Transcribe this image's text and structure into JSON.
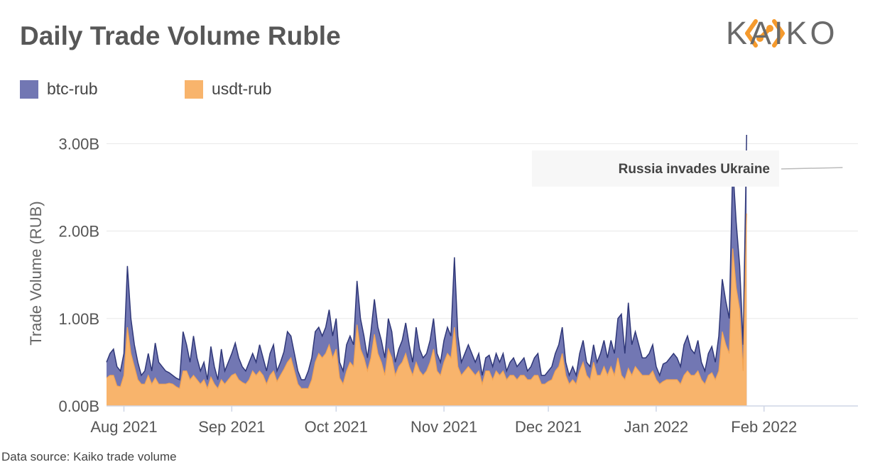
{
  "header": {
    "title": "Daily Trade Volume Ruble",
    "logo_text": "KAIKO"
  },
  "footer": {
    "source": "Data source: Kaiko trade volume"
  },
  "colors": {
    "btc": "#7277b3",
    "btc_line": "#2f3778",
    "usdt": "#f8b46c",
    "usdt_line": "#f3a453",
    "grid": "#e8e8e8",
    "logo_orange": "#f59a2d"
  },
  "chart_data": {
    "type": "area",
    "stacked": true,
    "title": "Daily Trade Volume Ruble",
    "xlabel": "",
    "ylabel": "Trade Volume (RUB)",
    "ylim": [
      0,
      3.1
    ],
    "y_ticks": [
      0,
      1,
      2,
      3
    ],
    "y_tick_labels": [
      "0.00B",
      "1.00B",
      "2.00B",
      "3.00B"
    ],
    "x_ticks": [
      "Aug 2021",
      "Sep 2021",
      "Oct 2021",
      "Nov 2021",
      "Dec 2021",
      "Jan 2022",
      "Feb 2022"
    ],
    "x_range": [
      "2021-07-27",
      "2022-02-28"
    ],
    "legend_position": "top-left",
    "grid": true,
    "start_date": "2021-07-27",
    "annotation": {
      "text": "Russia invades Ukraine",
      "date": "2022-02-24",
      "value": 2.75
    },
    "series": [
      {
        "name": "btc-rub",
        "values": [
          0.18,
          0.25,
          0.3,
          0.22,
          0.18,
          0.25,
          0.7,
          0.4,
          0.25,
          0.2,
          0.1,
          0.15,
          0.25,
          0.15,
          0.4,
          0.25,
          0.2,
          0.15,
          0.12,
          0.1,
          0.1,
          0.1,
          0.45,
          0.3,
          0.2,
          0.45,
          0.25,
          0.15,
          0.2,
          0.1,
          0.35,
          0.2,
          0.1,
          0.35,
          0.15,
          0.2,
          0.25,
          0.35,
          0.25,
          0.18,
          0.15,
          0.2,
          0.2,
          0.15,
          0.3,
          0.2,
          0.15,
          0.25,
          0.3,
          0.12,
          0.15,
          0.2,
          0.35,
          0.25,
          0.2,
          0.15,
          0.1,
          0.1,
          0.2,
          0.25,
          0.35,
          0.3,
          0.25,
          0.3,
          0.4,
          0.25,
          0.35,
          0.18,
          0.15,
          0.3,
          0.3,
          0.25,
          0.5,
          0.35,
          0.25,
          0.15,
          0.3,
          0.4,
          0.3,
          0.25,
          0.2,
          0.35,
          0.3,
          0.15,
          0.2,
          0.25,
          0.35,
          0.25,
          0.15,
          0.4,
          0.25,
          0.2,
          0.2,
          0.25,
          0.35,
          0.2,
          0.15,
          0.25,
          0.3,
          0.25,
          0.8,
          0.35,
          0.15,
          0.2,
          0.25,
          0.2,
          0.15,
          0.2,
          0.1,
          0.15,
          0.18,
          0.15,
          0.2,
          0.15,
          0.2,
          0.1,
          0.15,
          0.2,
          0.15,
          0.15,
          0.2,
          0.1,
          0.15,
          0.2,
          0.25,
          0.1,
          0.1,
          0.12,
          0.15,
          0.2,
          0.25,
          0.3,
          0.15,
          0.1,
          0.15,
          0.1,
          0.2,
          0.25,
          0.15,
          0.15,
          0.2,
          0.15,
          0.25,
          0.3,
          0.2,
          0.3,
          0.25,
          0.45,
          0.7,
          0.3,
          0.75,
          0.35,
          0.4,
          0.3,
          0.2,
          0.2,
          0.25,
          0.3,
          0.15,
          0.1,
          0.2,
          0.2,
          0.25,
          0.3,
          0.25,
          0.2,
          0.35,
          0.4,
          0.3,
          0.25,
          0.35,
          0.2,
          0.15,
          0.25,
          0.3,
          0.2,
          0.4,
          0.6,
          0.5,
          0.4,
          0.95,
          0.75,
          0.5,
          0.3,
          0.9
        ],
        "stack_top": [
          0.5,
          0.6,
          0.65,
          0.45,
          0.4,
          0.6,
          1.6,
          1.0,
          0.7,
          0.5,
          0.35,
          0.4,
          0.6,
          0.4,
          0.72,
          0.5,
          0.45,
          0.4,
          0.38,
          0.35,
          0.32,
          0.3,
          0.85,
          0.7,
          0.5,
          0.8,
          0.55,
          0.4,
          0.5,
          0.3,
          0.68,
          0.45,
          0.3,
          0.65,
          0.4,
          0.5,
          0.6,
          0.72,
          0.55,
          0.45,
          0.4,
          0.5,
          0.6,
          0.5,
          0.7,
          0.55,
          0.4,
          0.6,
          0.7,
          0.4,
          0.5,
          0.62,
          0.85,
          0.8,
          0.6,
          0.4,
          0.3,
          0.3,
          0.4,
          0.55,
          0.85,
          0.9,
          0.8,
          0.9,
          1.1,
          0.8,
          1.0,
          0.5,
          0.4,
          0.7,
          0.8,
          0.7,
          1.43,
          1.0,
          0.8,
          0.55,
          0.85,
          1.22,
          0.9,
          0.75,
          0.55,
          1.0,
          0.85,
          0.5,
          0.65,
          0.75,
          0.95,
          0.7,
          0.5,
          0.9,
          0.65,
          0.55,
          0.6,
          0.75,
          1.0,
          0.6,
          0.5,
          0.75,
          0.9,
          0.8,
          1.7,
          0.8,
          0.5,
          0.6,
          0.7,
          0.6,
          0.5,
          0.6,
          0.35,
          0.55,
          0.58,
          0.45,
          0.6,
          0.5,
          0.6,
          0.4,
          0.5,
          0.55,
          0.45,
          0.5,
          0.55,
          0.4,
          0.45,
          0.55,
          0.6,
          0.35,
          0.35,
          0.4,
          0.45,
          0.6,
          0.7,
          0.9,
          0.5,
          0.35,
          0.45,
          0.35,
          0.6,
          0.75,
          0.5,
          0.45,
          0.7,
          0.5,
          0.6,
          0.75,
          0.55,
          0.75,
          0.6,
          1.0,
          1.05,
          0.6,
          1.18,
          0.7,
          0.85,
          0.7,
          0.55,
          0.55,
          0.6,
          0.7,
          0.45,
          0.35,
          0.48,
          0.5,
          0.55,
          0.6,
          0.55,
          0.45,
          0.7,
          0.8,
          0.65,
          0.6,
          0.75,
          0.5,
          0.4,
          0.6,
          0.68,
          0.5,
          0.8,
          1.45,
          1.2,
          1.0,
          2.75,
          2.1,
          1.6,
          0.7,
          3.1
        ]
      },
      {
        "name": "usdt-rub",
        "values": [
          0.32,
          0.35,
          0.35,
          0.23,
          0.22,
          0.35,
          0.9,
          0.6,
          0.45,
          0.3,
          0.25,
          0.25,
          0.35,
          0.25,
          0.32,
          0.25,
          0.25,
          0.25,
          0.26,
          0.25,
          0.22,
          0.2,
          0.4,
          0.4,
          0.3,
          0.35,
          0.3,
          0.25,
          0.3,
          0.2,
          0.33,
          0.25,
          0.2,
          0.3,
          0.25,
          0.3,
          0.35,
          0.37,
          0.3,
          0.27,
          0.25,
          0.3,
          0.4,
          0.35,
          0.4,
          0.35,
          0.25,
          0.35,
          0.4,
          0.28,
          0.35,
          0.42,
          0.5,
          0.55,
          0.4,
          0.25,
          0.2,
          0.2,
          0.2,
          0.3,
          0.5,
          0.6,
          0.55,
          0.6,
          0.7,
          0.55,
          0.65,
          0.32,
          0.25,
          0.4,
          0.5,
          0.45,
          0.93,
          0.65,
          0.55,
          0.4,
          0.55,
          0.82,
          0.6,
          0.5,
          0.35,
          0.65,
          0.55,
          0.35,
          0.45,
          0.5,
          0.6,
          0.45,
          0.35,
          0.5,
          0.4,
          0.35,
          0.4,
          0.5,
          0.65,
          0.4,
          0.35,
          0.5,
          0.6,
          0.55,
          0.9,
          0.45,
          0.35,
          0.4,
          0.45,
          0.4,
          0.35,
          0.4,
          0.25,
          0.4,
          0.4,
          0.3,
          0.4,
          0.35,
          0.4,
          0.3,
          0.35,
          0.35,
          0.3,
          0.35,
          0.35,
          0.3,
          0.3,
          0.35,
          0.35,
          0.25,
          0.25,
          0.28,
          0.3,
          0.4,
          0.45,
          0.6,
          0.35,
          0.25,
          0.3,
          0.25,
          0.4,
          0.5,
          0.35,
          0.3,
          0.5,
          0.35,
          0.35,
          0.45,
          0.35,
          0.45,
          0.35,
          0.55,
          0.35,
          0.3,
          0.43,
          0.35,
          0.45,
          0.4,
          0.35,
          0.35,
          0.35,
          0.4,
          0.3,
          0.25,
          0.28,
          0.3,
          0.3,
          0.3,
          0.3,
          0.25,
          0.35,
          0.4,
          0.35,
          0.35,
          0.4,
          0.3,
          0.25,
          0.35,
          0.38,
          0.3,
          0.4,
          0.85,
          0.7,
          0.6,
          1.8,
          1.35,
          1.1,
          0.4,
          2.2
        ]
      }
    ]
  }
}
